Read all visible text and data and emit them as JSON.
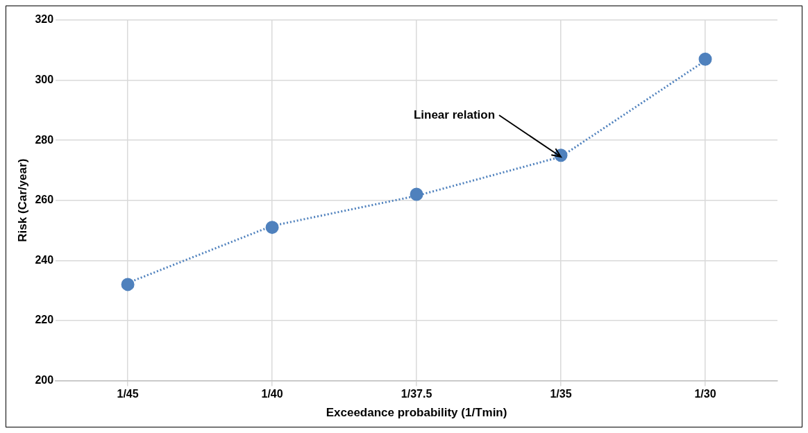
{
  "chart_data": {
    "type": "scatter",
    "xlabel": "Exceedance probability (1/Tmin)",
    "ylabel": "Risk (Car/year)",
    "categories": [
      "1/45",
      "1/40",
      "1/37.5",
      "1/35",
      "1/30"
    ],
    "series": [
      {
        "color": "#4f81bd",
        "marker": "circle",
        "values": [
          232,
          251,
          262,
          275,
          307
        ]
      },
      {
        "type": "line",
        "color": "#4f81bd",
        "marker": "none",
        "line_style": "dotted",
        "values": [
          232.5,
          251.5,
          261.5,
          274.5,
          306.5
        ]
      }
    ],
    "ylim": [
      200,
      320
    ],
    "yticks": [
      200,
      220,
      240,
      260,
      280,
      300,
      320
    ],
    "grid": true,
    "legend": false,
    "annotations": [
      {
        "text": "Linear relation",
        "x": "1/35",
        "y": 274.5
      }
    ]
  }
}
